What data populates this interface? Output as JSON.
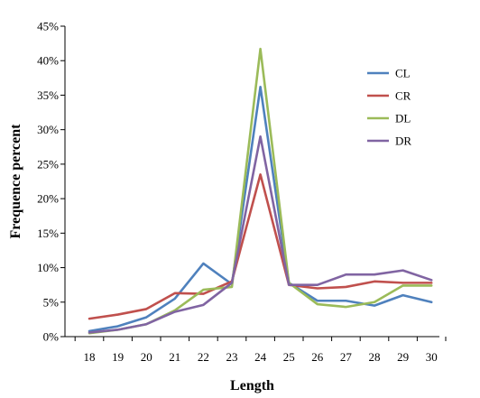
{
  "chart_data": {
    "type": "line",
    "xlabel": "Length",
    "ylabel": "Frequence percent",
    "ylim": [
      0,
      45
    ],
    "y_tick_values": [
      0,
      5,
      10,
      15,
      20,
      25,
      30,
      35,
      40,
      45
    ],
    "y_tick_labels": [
      "0%",
      "5%",
      "10%",
      "15%",
      "20%",
      "25%",
      "30%",
      "35%",
      "40%",
      "45%"
    ],
    "x": [
      18,
      19,
      20,
      21,
      22,
      23,
      24,
      25,
      26,
      27,
      28,
      29,
      30
    ],
    "x_tick_labels": [
      "18",
      "19",
      "20",
      "21",
      "22",
      "23",
      "24",
      "25",
      "26",
      "27",
      "28",
      "29",
      "30"
    ],
    "grid": false,
    "legend_position": "top-right",
    "series": [
      {
        "name": "CL",
        "color": "#4f81bd",
        "values": [
          0.8,
          1.5,
          2.8,
          5.5,
          10.6,
          7.6,
          36.2,
          7.8,
          5.2,
          5.2,
          4.5,
          6.0,
          5.0
        ]
      },
      {
        "name": "CR",
        "color": "#c0504d",
        "values": [
          2.6,
          3.2,
          4.0,
          6.3,
          6.2,
          8.0,
          23.5,
          7.5,
          7.0,
          7.2,
          8.0,
          7.8,
          7.8
        ]
      },
      {
        "name": "DL",
        "color": "#9bbb59",
        "values": [
          0.5,
          1.0,
          1.8,
          3.8,
          6.8,
          7.2,
          41.7,
          7.8,
          4.7,
          4.3,
          5.0,
          7.4,
          7.4
        ]
      },
      {
        "name": "DR",
        "color": "#8064a2",
        "values": [
          0.6,
          1.0,
          1.8,
          3.6,
          4.6,
          7.8,
          29.0,
          7.5,
          7.5,
          9.0,
          9.0,
          9.6,
          8.2
        ]
      }
    ]
  }
}
